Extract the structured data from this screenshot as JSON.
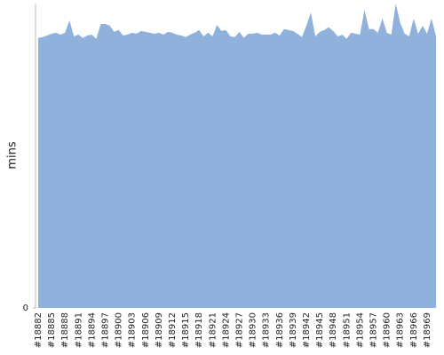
{
  "chart_data": {
    "type": "area",
    "y_label": "mins",
    "color": "#8fb1dc",
    "categories": [
      "#18882",
      null,
      null,
      "#18885",
      null,
      null,
      "#18888",
      null,
      null,
      "#18891",
      null,
      null,
      "#18894",
      null,
      null,
      "#18897",
      null,
      null,
      "#18900",
      null,
      null,
      "#18903",
      null,
      null,
      "#18906",
      null,
      null,
      "#18909",
      null,
      null,
      "#18912",
      null,
      null,
      "#18915",
      null,
      null,
      "#18918",
      null,
      null,
      "#18921",
      null,
      null,
      "#18924",
      null,
      null,
      "#18927",
      null,
      null,
      "#18930",
      null,
      null,
      "#18933",
      null,
      null,
      "#18936",
      null,
      null,
      "#18939",
      null,
      null,
      "#18942",
      null,
      null,
      "#18945",
      null,
      null,
      "#18948",
      null,
      null,
      "#18951",
      null,
      null,
      "#18954",
      null,
      null,
      "#18957",
      null,
      null,
      "#18960",
      null,
      null,
      "#18963",
      null,
      null,
      "#18966",
      null,
      null,
      "#18969",
      null,
      null
    ],
    "values": [
      88.7,
      89.0,
      89.5,
      90.1,
      90.4,
      89.8,
      90.4,
      94.5,
      89.2,
      89.8,
      88.7,
      89.5,
      89.8,
      88.4,
      93.3,
      93.3,
      92.7,
      90.7,
      91.3,
      89.5,
      89.8,
      90.4,
      90.1,
      91.0,
      90.7,
      90.4,
      90.1,
      90.4,
      89.8,
      90.7,
      90.4,
      89.8,
      89.5,
      89.0,
      89.8,
      90.4,
      91.3,
      89.2,
      90.4,
      89.2,
      93.0,
      91.0,
      91.3,
      89.2,
      89.0,
      90.7,
      88.7,
      90.1,
      90.1,
      90.4,
      89.8,
      89.8,
      89.8,
      90.4,
      89.5,
      91.6,
      91.3,
      91.0,
      90.1,
      89.0,
      92.7,
      97.1,
      89.2,
      90.7,
      91.3,
      92.2,
      91.0,
      89.2,
      89.8,
      88.4,
      90.4,
      90.1,
      89.8,
      98.0,
      91.6,
      91.6,
      90.4,
      95.1,
      90.4,
      89.8,
      100,
      93.6,
      90.1,
      89.2,
      95.1,
      90.1,
      92.7,
      90.1,
      95.1,
      89.2
    ],
    "ylim": [
      0,
      100
    ],
    "yticks": [
      0
    ]
  }
}
